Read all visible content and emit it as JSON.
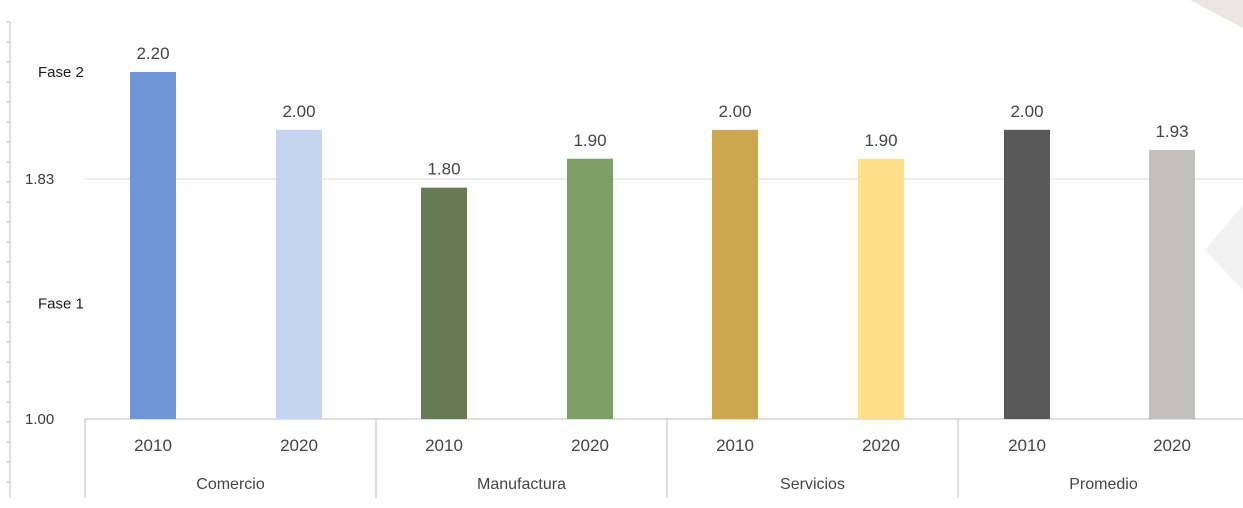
{
  "chart_data": {
    "type": "bar",
    "title": "",
    "xlabel": "",
    "ylabel": "",
    "ylim": [
      1.0,
      2.3
    ],
    "yticks": [
      {
        "value": 1.0,
        "label": "1.00"
      },
      {
        "value": 1.83,
        "label": "1.83"
      }
    ],
    "phase_labels": [
      {
        "value": 2.2,
        "label": "Fase 2"
      },
      {
        "value": 1.4,
        "label": "Fase 1"
      }
    ],
    "gridline_values": [
      1.83
    ],
    "groups": [
      {
        "name": "Comercio",
        "bars": [
          {
            "year": "2010",
            "value": 2.2,
            "label": "2.20",
            "color": "#6f96d6"
          },
          {
            "year": "2020",
            "value": 2.0,
            "label": "2.00",
            "color": "#c6d5ef"
          }
        ]
      },
      {
        "name": "Manufactura",
        "bars": [
          {
            "year": "2010",
            "value": 1.8,
            "label": "1.80",
            "color": "#667b55"
          },
          {
            "year": "2020",
            "value": 1.9,
            "label": "1.90",
            "color": "#7c9e67"
          }
        ]
      },
      {
        "name": "Servicios",
        "bars": [
          {
            "year": "2010",
            "value": 2.0,
            "label": "2.00",
            "color": "#cda74e"
          },
          {
            "year": "2020",
            "value": 1.9,
            "label": "1.90",
            "color": "#fde089"
          }
        ]
      },
      {
        "name": "Promedio",
        "bars": [
          {
            "year": "2010",
            "value": 2.0,
            "label": "2.00",
            "color": "#595959"
          },
          {
            "year": "2020",
            "value": 1.93,
            "label": "1.93",
            "color": "#c1c0bd"
          }
        ]
      }
    ],
    "grid": true,
    "legend": "none"
  },
  "colors": {
    "axis": "#bfbfbf",
    "gridline": "#d9d9d9"
  }
}
